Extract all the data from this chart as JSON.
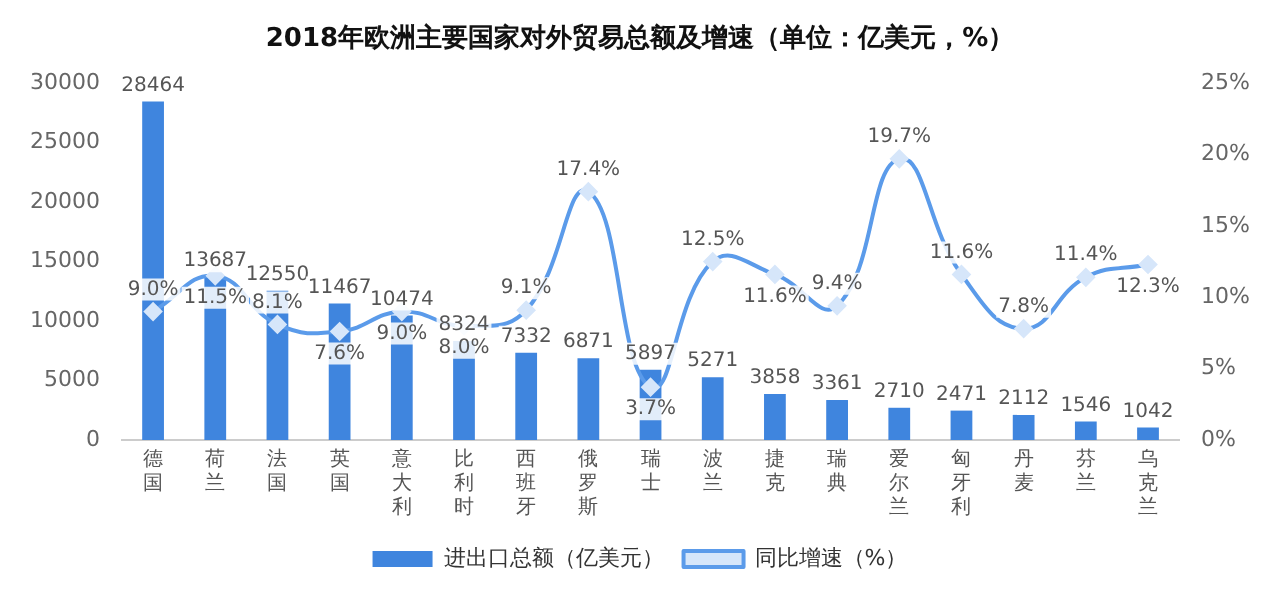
{
  "chart_data": {
    "type": "bar",
    "title": "2018年欧洲主要国家对外贸易总额及增速（单位：亿美元，%）",
    "categories": [
      "德国",
      "荷兰",
      "法国",
      "英国",
      "意大利",
      "比利时",
      "西班牙",
      "俄罗斯",
      "瑞士",
      "波兰",
      "捷克",
      "瑞典",
      "爱尔兰",
      "匈牙利",
      "丹麦",
      "芬兰",
      "乌克兰"
    ],
    "series": [
      {
        "name": "进出口总额（亿美元）",
        "color": "#3f85de",
        "values": [
          28464,
          13687,
          12550,
          11467,
          10474,
          8324,
          7332,
          6871,
          5897,
          5271,
          3858,
          3361,
          2710,
          2471,
          2112,
          1546,
          1042
        ],
        "value_labels": [
          "28464",
          "13687",
          "12550",
          "11467",
          "10474",
          "8324",
          "7332",
          "6871",
          "5897",
          "5271",
          "3858",
          "3361",
          "2710",
          "2471",
          "2112",
          "1546",
          "1042"
        ]
      },
      {
        "name": "同比增速（%）",
        "type": "line",
        "axis": "y2",
        "color": "#5b9bea",
        "values": [
          9.0,
          11.5,
          8.1,
          7.6,
          9.0,
          8.0,
          9.1,
          17.4,
          3.7,
          12.5,
          11.6,
          9.4,
          19.7,
          11.6,
          7.8,
          11.4,
          12.3
        ],
        "value_labels": [
          "9.0%",
          "11.5%",
          "8.1%",
          "7.6%",
          "9.0%",
          "8.0%",
          "9.1%",
          "17.4%",
          "3.7%",
          "12.5%",
          "11.6%",
          "9.4%",
          "19.7%",
          "11.6%",
          "7.8%",
          "11.4%",
          "12.3%"
        ]
      }
    ],
    "ylim": [
      0,
      30000
    ],
    "yticks": [
      0,
      5000,
      10000,
      15000,
      20000,
      25000,
      30000
    ],
    "y2lim": [
      0,
      25
    ],
    "y2ticks": [
      {
        "value": 0,
        "label": "0%"
      },
      {
        "value": 5,
        "label": "5%"
      },
      {
        "value": 10,
        "label": "10%"
      },
      {
        "value": 15,
        "label": "15%"
      },
      {
        "value": 20,
        "label": "20%"
      },
      {
        "value": 25,
        "label": "25%"
      }
    ],
    "marker": "diamond",
    "grid": false,
    "legend": "bottom"
  }
}
